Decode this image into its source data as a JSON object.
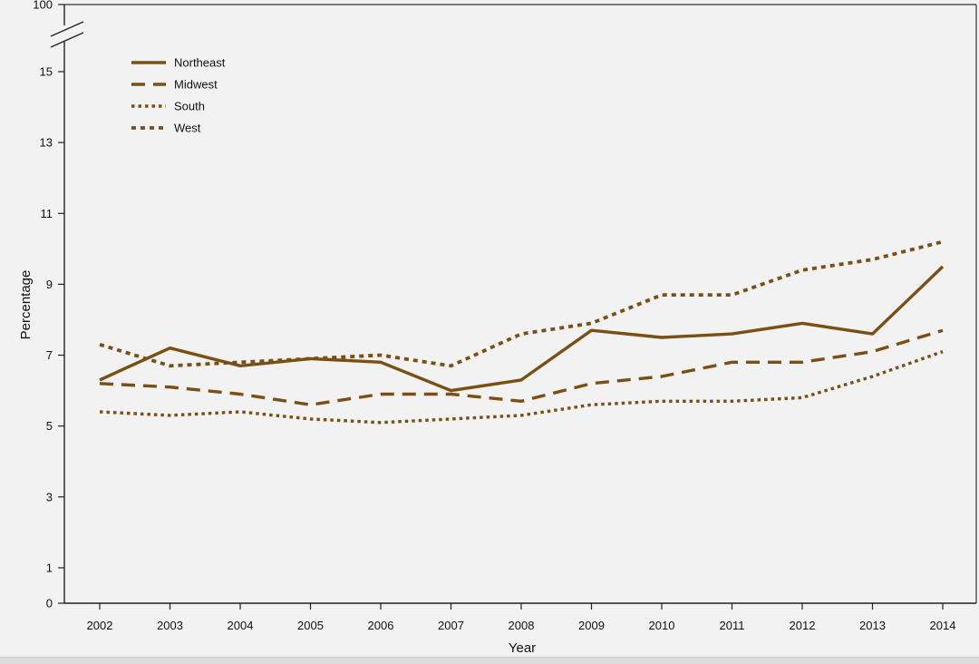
{
  "chart_data": {
    "type": "line",
    "title": "",
    "xlabel": "Year",
    "ylabel": "Percentage",
    "x": [
      "2002",
      "2003",
      "2004",
      "2005",
      "2006",
      "2007",
      "2008",
      "2009",
      "2010",
      "2011",
      "2012",
      "2013",
      "2014"
    ],
    "y_ticks": [
      0,
      1,
      3,
      5,
      7,
      9,
      11,
      13,
      15
    ],
    "y_break_tick": 100,
    "ylim": [
      0,
      16
    ],
    "axis_break": true,
    "grid": false,
    "legend_position": "top-left",
    "line_color": "#7a4f14",
    "series": [
      {
        "name": "Northeast",
        "style": "solid",
        "values": [
          6.3,
          7.2,
          6.7,
          6.9,
          6.8,
          6.0,
          6.3,
          7.7,
          7.5,
          7.6,
          7.9,
          7.6,
          9.5
        ]
      },
      {
        "name": "Midwest",
        "style": "long-dash",
        "values": [
          6.2,
          6.1,
          5.9,
          5.6,
          5.9,
          5.9,
          5.7,
          6.2,
          6.4,
          6.8,
          6.8,
          7.1,
          7.7
        ]
      },
      {
        "name": "South",
        "style": "dotted",
        "values": [
          5.4,
          5.3,
          5.4,
          5.2,
          5.1,
          5.2,
          5.3,
          5.6,
          5.7,
          5.7,
          5.8,
          6.4,
          7.1
        ]
      },
      {
        "name": "West",
        "style": "short-dash",
        "values": [
          7.3,
          6.7,
          6.8,
          6.9,
          7.0,
          6.7,
          7.6,
          7.9,
          8.7,
          8.7,
          9.4,
          9.7,
          10.2
        ]
      }
    ]
  }
}
